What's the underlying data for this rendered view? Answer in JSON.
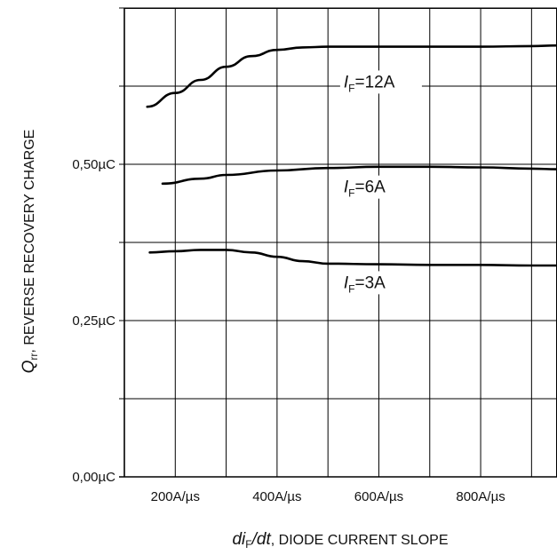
{
  "chart_data": {
    "type": "line",
    "xlabel": {
      "symbol_pre": "di",
      "symbol_sub": "F",
      "symbol_post": "/dt",
      "text": ", DIODE CURRENT SLOPE"
    },
    "ylabel": {
      "symbol": "Q",
      "symbol_sub": "rr",
      "text": ", REVERSE RECOVERY CHARGE"
    },
    "xlim": [
      100,
      950
    ],
    "ylim": [
      0,
      0.75
    ],
    "x_ticks": [
      {
        "value": 200,
        "label": "200A/µs"
      },
      {
        "value": 400,
        "label": "400A/µs"
      },
      {
        "value": 600,
        "label": "600A/µs"
      },
      {
        "value": 800,
        "label": "800A/µs"
      }
    ],
    "y_ticks": [
      {
        "value": 0.0,
        "label": "0,00µC"
      },
      {
        "value": 0.25,
        "label": "0,25µC"
      },
      {
        "value": 0.5,
        "label": "0,50µC"
      }
    ],
    "grid": true,
    "series": [
      {
        "name_symbol": "I",
        "name_sub": "F",
        "name_text": "=12A",
        "label_at": [
          510,
          0.623
        ],
        "x": [
          145,
          200,
          250,
          300,
          350,
          400,
          450,
          500,
          600,
          700,
          800,
          900,
          950
        ],
        "y": [
          0.592,
          0.614,
          0.635,
          0.656,
          0.673,
          0.683,
          0.687,
          0.688,
          0.688,
          0.688,
          0.688,
          0.689,
          0.69
        ]
      },
      {
        "name_symbol": "I",
        "name_sub": "F",
        "name_text": "=6A",
        "label_at": [
          510,
          0.455
        ],
        "x": [
          175,
          250,
          300,
          400,
          500,
          600,
          700,
          800,
          900,
          950
        ],
        "y": [
          0.469,
          0.477,
          0.483,
          0.49,
          0.494,
          0.496,
          0.496,
          0.495,
          0.493,
          0.492
        ]
      },
      {
        "name_symbol": "I",
        "name_sub": "F",
        "name_text": "=3A",
        "label_at": [
          510,
          0.302
        ],
        "x": [
          150,
          200,
          250,
          300,
          350,
          400,
          450,
          500,
          600,
          700,
          800,
          900,
          950
        ],
        "y": [
          0.359,
          0.361,
          0.363,
          0.363,
          0.359,
          0.352,
          0.345,
          0.341,
          0.34,
          0.339,
          0.339,
          0.338,
          0.338
        ]
      }
    ]
  }
}
